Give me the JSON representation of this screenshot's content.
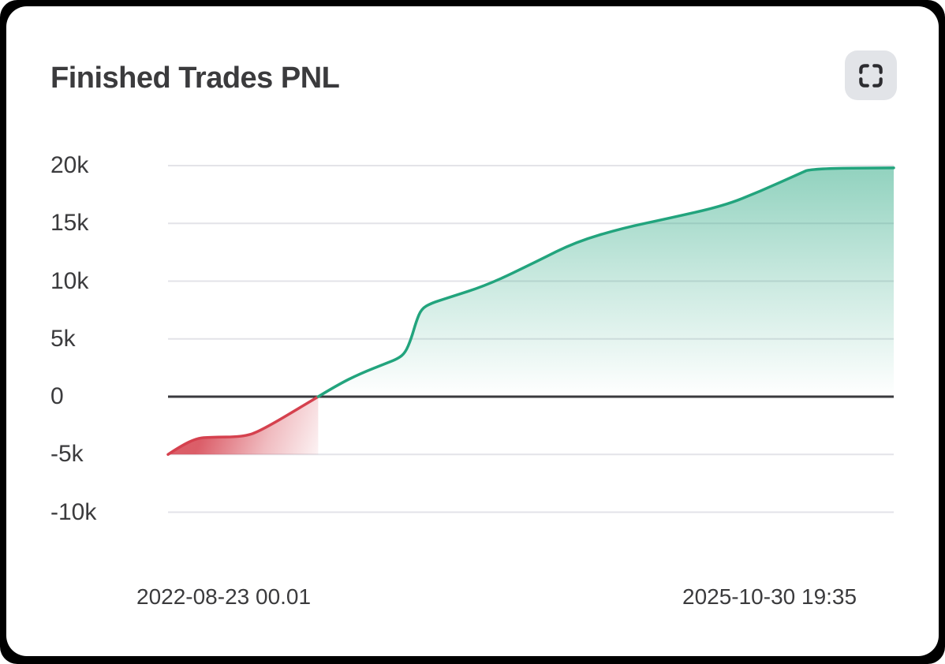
{
  "header": {
    "title": "Finished Trades PNL",
    "expand_button": {
      "icon": "fullscreen-corners-icon"
    }
  },
  "chart_data": {
    "type": "area",
    "title": "Finished Trades PNL",
    "xlabel": "",
    "ylabel": "",
    "ylim": [
      -10000,
      20000
    ],
    "grid": true,
    "legend": false,
    "zero_line_value": 0,
    "y_ticks": [
      {
        "label": "20k",
        "value": 20000
      },
      {
        "label": "15k",
        "value": 15000
      },
      {
        "label": "10k",
        "value": 10000
      },
      {
        "label": "5k",
        "value": 5000
      },
      {
        "label": "0",
        "value": 0
      },
      {
        "label": "-5k",
        "value": -5000
      },
      {
        "label": "-10k",
        "value": -10000
      }
    ],
    "x_ticks": [
      {
        "label": "2022-08-23 00.01"
      },
      {
        "label": "2025-10-30 19:35"
      }
    ],
    "series": [
      {
        "name": "Finished Trades PNL",
        "points": [
          [
            0.0,
            -5000
          ],
          [
            0.018,
            -4250
          ],
          [
            0.04,
            -3600
          ],
          [
            0.058,
            -3500
          ],
          [
            0.102,
            -3480
          ],
          [
            0.127,
            -3000
          ],
          [
            0.207,
            0
          ],
          [
            0.233,
            1000
          ],
          [
            0.265,
            2000
          ],
          [
            0.301,
            2900
          ],
          [
            0.317,
            3300
          ],
          [
            0.327,
            3800
          ],
          [
            0.335,
            5000
          ],
          [
            0.342,
            6500
          ],
          [
            0.349,
            7600
          ],
          [
            0.363,
            8100
          ],
          [
            0.383,
            8500
          ],
          [
            0.442,
            9700
          ],
          [
            0.508,
            11700
          ],
          [
            0.562,
            13400
          ],
          [
            0.627,
            14600
          ],
          [
            0.687,
            15400
          ],
          [
            0.765,
            16500
          ],
          [
            0.817,
            17800
          ],
          [
            0.87,
            19300
          ],
          [
            0.886,
            19750
          ],
          [
            1.0,
            19800
          ]
        ]
      }
    ],
    "colors": {
      "positive_line": "#22a47d",
      "negative_line": "#d5414e",
      "zero_line": "#3a3a3e",
      "grid_line": "#e3e3e8",
      "text": "#3b3b3d",
      "card_background": "#ffffff",
      "page_background": "#000000",
      "button_background": "#e2e4e8",
      "button_icon": "#2c2c30"
    }
  }
}
